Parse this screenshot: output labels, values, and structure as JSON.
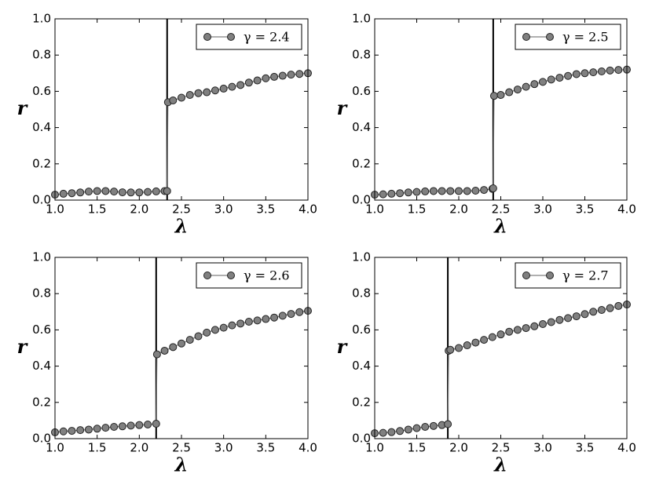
{
  "chart_data": [
    {
      "type": "line",
      "xlabel": "λ",
      "ylabel": "r",
      "xlim": [
        1,
        4
      ],
      "ylim": [
        0,
        1
      ],
      "xticks": [
        {
          "value": 1,
          "label": "1.0"
        },
        {
          "value": 1.5,
          "label": "1.5"
        },
        {
          "value": 2,
          "label": "2.0"
        },
        {
          "value": 2.5,
          "label": "2.5"
        },
        {
          "value": 3,
          "label": "3.0"
        },
        {
          "value": 3.5,
          "label": "3.5"
        },
        {
          "value": 4,
          "label": "4.0"
        }
      ],
      "yticks": [
        {
          "value": 0,
          "label": "0.0"
        },
        {
          "value": 0.2,
          "label": "0.2"
        },
        {
          "value": 0.4,
          "label": "0.4"
        },
        {
          "value": 0.6,
          "label": "0.6"
        },
        {
          "value": 0.8,
          "label": "0.8"
        },
        {
          "value": 1,
          "label": "1.0"
        }
      ],
      "vline": 2.33,
      "legend": "upper right",
      "x": [
        1.0,
        1.1,
        1.2,
        1.3,
        1.4,
        1.5,
        1.6,
        1.7,
        1.8,
        1.9,
        2.0,
        2.1,
        2.2,
        2.3,
        2.33,
        2.34,
        2.4,
        2.5,
        2.6,
        2.7,
        2.8,
        2.9,
        3.0,
        3.1,
        3.2,
        3.3,
        3.4,
        3.5,
        3.6,
        3.7,
        3.8,
        3.9,
        4.0
      ],
      "series": [
        {
          "name": "γ = 2.4",
          "color": "#808080",
          "values": [
            0.03,
            0.035,
            0.038,
            0.042,
            0.047,
            0.05,
            0.05,
            0.047,
            0.043,
            0.042,
            0.042,
            0.045,
            0.048,
            0.05,
            0.05,
            0.54,
            0.55,
            0.565,
            0.58,
            0.59,
            0.595,
            0.605,
            0.615,
            0.625,
            0.635,
            0.648,
            0.66,
            0.672,
            0.68,
            0.686,
            0.692,
            0.696,
            0.7
          ]
        }
      ]
    },
    {
      "type": "line",
      "xlabel": "λ",
      "ylabel": "r",
      "xlim": [
        1,
        4
      ],
      "ylim": [
        0,
        1
      ],
      "xticks": [
        {
          "value": 1,
          "label": "1.0"
        },
        {
          "value": 1.5,
          "label": "1.5"
        },
        {
          "value": 2,
          "label": "2.0"
        },
        {
          "value": 2.5,
          "label": "2.5"
        },
        {
          "value": 3,
          "label": "3.0"
        },
        {
          "value": 3.5,
          "label": "3.5"
        },
        {
          "value": 4,
          "label": "4.0"
        }
      ],
      "yticks": [
        {
          "value": 0,
          "label": "0.0"
        },
        {
          "value": 0.2,
          "label": "0.2"
        },
        {
          "value": 0.4,
          "label": "0.4"
        },
        {
          "value": 0.6,
          "label": "0.6"
        },
        {
          "value": 0.8,
          "label": "0.8"
        },
        {
          "value": 1,
          "label": "1.0"
        }
      ],
      "vline": 2.41,
      "legend": "upper right",
      "x": [
        1.0,
        1.1,
        1.2,
        1.3,
        1.4,
        1.5,
        1.6,
        1.7,
        1.8,
        1.9,
        2.0,
        2.1,
        2.2,
        2.3,
        2.4,
        2.41,
        2.42,
        2.5,
        2.6,
        2.7,
        2.8,
        2.9,
        3.0,
        3.1,
        3.2,
        3.3,
        3.4,
        3.5,
        3.6,
        3.7,
        3.8,
        3.9,
        4.0
      ],
      "series": [
        {
          "name": "γ = 2.5",
          "color": "#808080",
          "values": [
            0.03,
            0.032,
            0.035,
            0.038,
            0.042,
            0.045,
            0.048,
            0.05,
            0.05,
            0.05,
            0.05,
            0.05,
            0.052,
            0.056,
            0.062,
            0.065,
            0.575,
            0.58,
            0.595,
            0.61,
            0.625,
            0.64,
            0.652,
            0.665,
            0.675,
            0.685,
            0.695,
            0.7,
            0.705,
            0.71,
            0.715,
            0.718,
            0.72
          ]
        }
      ]
    },
    {
      "type": "line",
      "xlabel": "λ",
      "ylabel": "r",
      "xlim": [
        1,
        4
      ],
      "ylim": [
        0,
        1
      ],
      "xticks": [
        {
          "value": 1,
          "label": "1.0"
        },
        {
          "value": 1.5,
          "label": "1.5"
        },
        {
          "value": 2,
          "label": "2.0"
        },
        {
          "value": 2.5,
          "label": "2.5"
        },
        {
          "value": 3,
          "label": "3.0"
        },
        {
          "value": 3.5,
          "label": "3.5"
        },
        {
          "value": 4,
          "label": "4.0"
        }
      ],
      "yticks": [
        {
          "value": 0,
          "label": "0.0"
        },
        {
          "value": 0.2,
          "label": "0.2"
        },
        {
          "value": 0.4,
          "label": "0.4"
        },
        {
          "value": 0.6,
          "label": "0.6"
        },
        {
          "value": 0.8,
          "label": "0.8"
        },
        {
          "value": 1,
          "label": "1.0"
        }
      ],
      "vline": 2.2,
      "legend": "upper right",
      "x": [
        1.0,
        1.1,
        1.2,
        1.3,
        1.4,
        1.5,
        1.6,
        1.7,
        1.8,
        1.9,
        2.0,
        2.1,
        2.2,
        2.21,
        2.3,
        2.4,
        2.5,
        2.6,
        2.7,
        2.8,
        2.9,
        3.0,
        3.1,
        3.2,
        3.3,
        3.4,
        3.5,
        3.6,
        3.7,
        3.8,
        3.9,
        4.0
      ],
      "series": [
        {
          "name": "γ = 2.6",
          "color": "#808080",
          "values": [
            0.035,
            0.04,
            0.043,
            0.047,
            0.05,
            0.055,
            0.06,
            0.065,
            0.068,
            0.072,
            0.075,
            0.078,
            0.082,
            0.465,
            0.485,
            0.505,
            0.525,
            0.545,
            0.565,
            0.585,
            0.6,
            0.612,
            0.625,
            0.635,
            0.645,
            0.652,
            0.66,
            0.668,
            0.678,
            0.688,
            0.698,
            0.705
          ]
        }
      ]
    },
    {
      "type": "line",
      "xlabel": "λ",
      "ylabel": "r",
      "xlim": [
        1,
        4
      ],
      "ylim": [
        0,
        1
      ],
      "xticks": [
        {
          "value": 1,
          "label": "1.0"
        },
        {
          "value": 1.5,
          "label": "1.5"
        },
        {
          "value": 2,
          "label": "2.0"
        },
        {
          "value": 2.5,
          "label": "2.5"
        },
        {
          "value": 3,
          "label": "3.0"
        },
        {
          "value": 3.5,
          "label": "3.5"
        },
        {
          "value": 4,
          "label": "4.0"
        }
      ],
      "yticks": [
        {
          "value": 0,
          "label": "0.0"
        },
        {
          "value": 0.2,
          "label": "0.2"
        },
        {
          "value": 0.4,
          "label": "0.4"
        },
        {
          "value": 0.6,
          "label": "0.6"
        },
        {
          "value": 0.8,
          "label": "0.8"
        },
        {
          "value": 1,
          "label": "1.0"
        }
      ],
      "vline": 1.87,
      "legend": "upper right",
      "x": [
        1.0,
        1.1,
        1.2,
        1.3,
        1.4,
        1.5,
        1.6,
        1.7,
        1.8,
        1.87,
        1.88,
        1.9,
        2.0,
        2.1,
        2.2,
        2.3,
        2.4,
        2.5,
        2.6,
        2.7,
        2.8,
        2.9,
        3.0,
        3.1,
        3.2,
        3.3,
        3.4,
        3.5,
        3.6,
        3.7,
        3.8,
        3.9,
        4.0
      ],
      "series": [
        {
          "name": "γ = 2.7",
          "color": "#808080",
          "values": [
            0.03,
            0.032,
            0.036,
            0.042,
            0.05,
            0.058,
            0.065,
            0.07,
            0.075,
            0.08,
            0.485,
            0.49,
            0.5,
            0.515,
            0.53,
            0.545,
            0.56,
            0.575,
            0.59,
            0.6,
            0.61,
            0.62,
            0.632,
            0.643,
            0.655,
            0.665,
            0.675,
            0.687,
            0.7,
            0.71,
            0.72,
            0.732,
            0.74
          ]
        }
      ]
    }
  ]
}
